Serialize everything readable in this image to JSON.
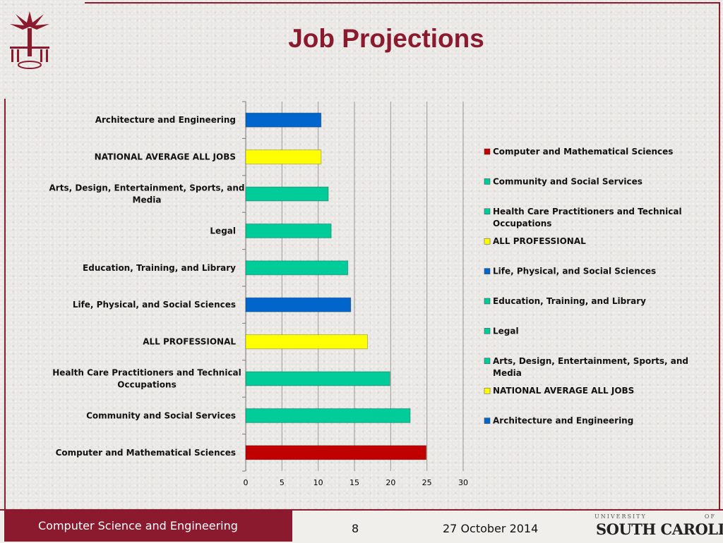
{
  "slide": {
    "title": "Job Projections",
    "footer_department": "Computer Science and Engineering",
    "page_number": "8",
    "date": "27 October 2014",
    "university_top": "UNIVERSITY OF",
    "university_main": "SOUTH CAROLINA."
  },
  "colors": {
    "accent": "#8b1a2f",
    "computer": "#c00000",
    "teal": "#00cc99",
    "yellow": "#ffff00",
    "blue": "#0066cc"
  },
  "chart_data": {
    "type": "bar",
    "orientation": "horizontal",
    "title": "",
    "xlabel": "",
    "ylabel": "",
    "xlim": [
      0,
      30
    ],
    "xticks": [
      0,
      5,
      10,
      15,
      20,
      25,
      30
    ],
    "grid": true,
    "legend_position": "right",
    "categories": [
      "Architecture and Engineering",
      "NATIONAL AVERAGE ALL JOBS",
      "Arts, Design, Entertainment, Sports, and Media",
      "Legal",
      "Education, Training, and Library",
      "Life, Physical, and Social Sciences",
      "ALL PROFESSIONAL",
      "Health Care Practitioners and Technical Occupations",
      "Community and Social Services",
      "Computer and Mathematical Sciences"
    ],
    "values": [
      10.4,
      10.4,
      11.4,
      11.8,
      14.1,
      14.5,
      16.8,
      19.9,
      22.7,
      24.9
    ],
    "bar_colors": [
      "#0066cc",
      "#ffff00",
      "#00cc99",
      "#00cc99",
      "#00cc99",
      "#0066cc",
      "#ffff00",
      "#00cc99",
      "#00cc99",
      "#c00000"
    ],
    "legend": [
      {
        "label": "Computer and Mathematical Sciences",
        "color": "#c00000"
      },
      {
        "label": "Community and Social Services",
        "color": "#00cc99"
      },
      {
        "label": "Health Care Practitioners and Technical Occupations",
        "color": "#00cc99"
      },
      {
        "label": "ALL PROFESSIONAL",
        "color": "#ffff00"
      },
      {
        "label": "Life, Physical, and Social Sciences",
        "color": "#0066cc"
      },
      {
        "label": "Education, Training, and Library",
        "color": "#00cc99"
      },
      {
        "label": "Legal",
        "color": "#00cc99"
      },
      {
        "label": "Arts, Design, Entertainment, Sports, and Media",
        "color": "#00cc99"
      },
      {
        "label": "NATIONAL AVERAGE ALL JOBS",
        "color": "#ffff00"
      },
      {
        "label": "Architecture and Engineering",
        "color": "#0066cc"
      }
    ]
  }
}
